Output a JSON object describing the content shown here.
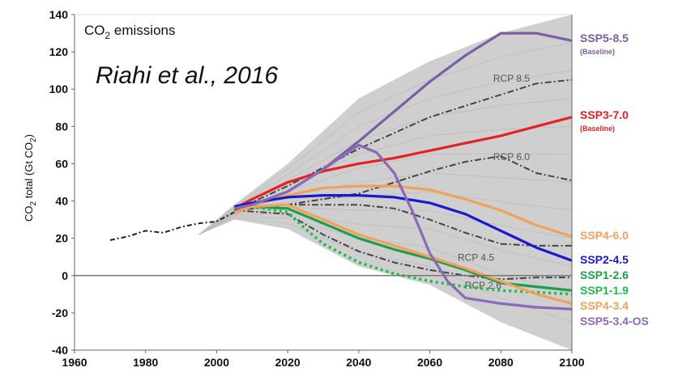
{
  "chart_data": {
    "type": "line",
    "title_main": "CO",
    "title_sub": "2",
    "title_rest": " emissions",
    "annotation": "Riahi et al., 2016",
    "ylabel": "CO2 total (Gt CO2)",
    "xlabel": "",
    "xlim": [
      1960,
      2100
    ],
    "ylim": [
      -40,
      140
    ],
    "x_ticks": [
      "1960",
      "1980",
      "2000",
      "2020",
      "2040",
      "2060",
      "2080",
      "2100"
    ],
    "y_ticks": [
      "140",
      "120",
      "100",
      "80",
      "60",
      "40",
      "20",
      "0",
      "-20",
      "-40"
    ],
    "grid": false,
    "zero_line": true,
    "historical": {
      "style": "dashed-black",
      "x": [
        1970,
        1975,
        1980,
        1985,
        1990,
        1995,
        2000,
        2005
      ],
      "y": [
        19,
        21,
        24,
        23,
        26,
        28,
        29,
        34
      ]
    },
    "scenario_range": {
      "color": "#cfcfcf",
      "x": [
        1995,
        2005,
        2020,
        2040,
        2060,
        2080,
        2100
      ],
      "upper": [
        22,
        38,
        60,
        95,
        115,
        130,
        140
      ],
      "lower": [
        22,
        30,
        25,
        5,
        -5,
        -25,
        -40
      ]
    },
    "series": [
      {
        "name": "SSP5-8.5",
        "sub": "(Baseline)",
        "color": "#7b5ea7",
        "style": "solid",
        "x": [
          2005,
          2010,
          2020,
          2030,
          2040,
          2050,
          2060,
          2070,
          2080,
          2090,
          2100
        ],
        "y": [
          36,
          38,
          45,
          57,
          72,
          88,
          104,
          118,
          130,
          130,
          126
        ]
      },
      {
        "name": "SSP3-7.0",
        "sub": "(Baseline)",
        "color": "#e32222",
        "style": "solid",
        "x": [
          2005,
          2010,
          2020,
          2030,
          2040,
          2050,
          2060,
          2070,
          2080,
          2090,
          2100
        ],
        "y": [
          36,
          41,
          50,
          56,
          60,
          63,
          67,
          71,
          75,
          80,
          85
        ]
      },
      {
        "name": "SSP4-6.0",
        "color": "#f0a15a",
        "style": "solid",
        "x": [
          2005,
          2010,
          2020,
          2030,
          2040,
          2050,
          2060,
          2070,
          2080,
          2090,
          2100
        ],
        "y": [
          33,
          38,
          43,
          47,
          48,
          48,
          46,
          41,
          35,
          27,
          21
        ]
      },
      {
        "name": "SSP2-4.5",
        "color": "#1a1acc",
        "style": "solid",
        "x": [
          2005,
          2010,
          2020,
          2030,
          2040,
          2050,
          2060,
          2070,
          2080,
          2090,
          2100
        ],
        "y": [
          37,
          39,
          42,
          43,
          43,
          42,
          39,
          33,
          24,
          15,
          8
        ]
      },
      {
        "name": "SSP1-2.6",
        "color": "#1e9e4a",
        "style": "solid",
        "x": [
          2005,
          2010,
          2020,
          2030,
          2040,
          2050,
          2060,
          2070,
          2080,
          2090,
          2100
        ],
        "y": [
          36,
          37,
          36,
          28,
          20,
          14,
          9,
          3,
          -4,
          -6,
          -8
        ]
      },
      {
        "name": "SSP1-1.9",
        "color": "#22bb44",
        "style": "dotted",
        "x": [
          2005,
          2010,
          2020,
          2025,
          2030,
          2040,
          2050,
          2060,
          2070,
          2080,
          2090,
          2100
        ],
        "y": [
          36,
          37,
          34,
          25,
          17,
          7,
          1,
          -3,
          -6,
          -8,
          -9,
          -10
        ]
      },
      {
        "name": "SSP4-3.4",
        "color": "#f0a15a",
        "style": "solid",
        "x": [
          2005,
          2010,
          2020,
          2030,
          2040,
          2050,
          2060,
          2070,
          2080,
          2090,
          2100
        ],
        "y": [
          34,
          37,
          38,
          30,
          22,
          16,
          10,
          4,
          -3,
          -10,
          -15
        ]
      },
      {
        "name": "SSP5-3.4-OS",
        "color": "#8a6ab8",
        "style": "solid",
        "x": [
          2005,
          2010,
          2020,
          2030,
          2040,
          2045,
          2050,
          2055,
          2060,
          2065,
          2070,
          2080,
          2090,
          2100
        ],
        "y": [
          36,
          38,
          45,
          57,
          70,
          66,
          55,
          35,
          12,
          -3,
          -12,
          -15,
          -17,
          -18
        ]
      }
    ],
    "rcp": [
      {
        "name": "RCP 8.5",
        "x": [
          2005,
          2020,
          2040,
          2060,
          2080,
          2090,
          2100
        ],
        "y": [
          35,
          48,
          68,
          85,
          97,
          103,
          105
        ]
      },
      {
        "name": "RCP 6.0",
        "x": [
          2005,
          2020,
          2040,
          2060,
          2070,
          2080,
          2090,
          2100
        ],
        "y": [
          35,
          38,
          44,
          56,
          61,
          64,
          55,
          51
        ]
      },
      {
        "name": "RCP 4.5",
        "x": [
          2005,
          2020,
          2040,
          2050,
          2060,
          2070,
          2080,
          2090,
          2100
        ],
        "y": [
          35,
          38,
          38,
          36,
          30,
          23,
          17,
          16,
          16
        ]
      },
      {
        "name": "RCP 2.6",
        "x": [
          2005,
          2020,
          2030,
          2040,
          2050,
          2060,
          2070,
          2080,
          2090,
          2100
        ],
        "y": [
          35,
          33,
          22,
          13,
          7,
          3,
          0,
          -2,
          -1,
          -1
        ]
      }
    ],
    "legend_placement": "right",
    "colors": {
      "axis": "#666666",
      "zero_line": "#777777",
      "rcp_line": "#444444"
    }
  }
}
